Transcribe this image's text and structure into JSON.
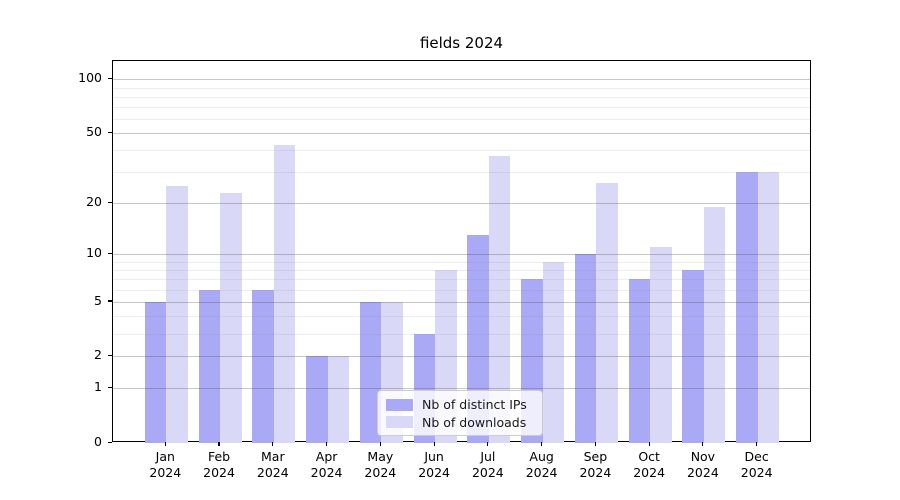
{
  "title": "fields 2024",
  "colors": {
    "distinct_ips_bar": "#a9a9f6",
    "downloads_bar": "#d9d9f7",
    "axis": "#000000",
    "legend_border": "#cccccc"
  },
  "chart_data": {
    "type": "bar",
    "title": "fields 2024",
    "categories": [
      "Jan 2024",
      "Feb 2024",
      "Mar 2024",
      "Apr 2024",
      "May 2024",
      "Jun 2024",
      "Jul 2024",
      "Aug 2024",
      "Sep 2024",
      "Oct 2024",
      "Nov 2024",
      "Dec 2024"
    ],
    "series": [
      {
        "name": "Nb of distinct IPs",
        "color": "#a9a9f6",
        "values": [
          5,
          6,
          6,
          2,
          5,
          3,
          13,
          7,
          10,
          7,
          8,
          30
        ]
      },
      {
        "name": "Nb of downloads",
        "color": "#d9d9f7",
        "values": [
          25,
          23,
          43,
          2,
          5,
          8,
          37,
          9,
          26,
          11,
          19,
          30
        ]
      }
    ],
    "xlabel": "",
    "ylabel": "",
    "yscale": "log1p",
    "ylim": [
      0,
      126.5
    ],
    "y_major_ticks": [
      0,
      1,
      2,
      5,
      10,
      20,
      50,
      100
    ],
    "y_minor_ticks": [
      3,
      4,
      6,
      7,
      8,
      9,
      30,
      40,
      60,
      70,
      80,
      90
    ],
    "grid": true,
    "grid_on_top_of_bars": true,
    "legend_position": "lower center"
  }
}
